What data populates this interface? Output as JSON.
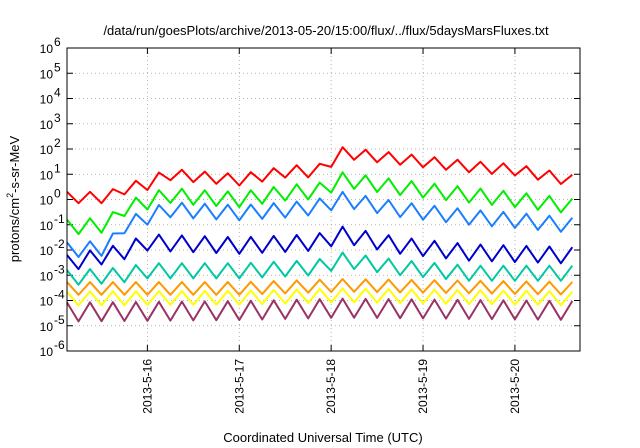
{
  "chart_data": {
    "type": "line",
    "title": "/data/run/goesPlots/archive/2013-05-20/15:00/flux/../flux/5daysMarsFluxes.txt",
    "xlabel": "Coordinated Universal Time (UTC)",
    "ylabel": "protons/cm2-s-sr-MeV",
    "ylabel_parts": {
      "pre": "protons/cm",
      "sup": "2",
      "post": "-s-sr-MeV"
    },
    "yscale": "log",
    "ylim": [
      1e-06,
      1000000.0
    ],
    "xlim": [
      "2013-05-15 03:00",
      "2013-05-20 17:00"
    ],
    "grid": true,
    "y_ticks": [
      {
        "base": "10",
        "exp": "-6",
        "value": 1e-06
      },
      {
        "base": "10",
        "exp": "-5",
        "value": 1e-05
      },
      {
        "base": "10",
        "exp": "-4",
        "value": 0.0001
      },
      {
        "base": "10",
        "exp": "-3",
        "value": 0.001
      },
      {
        "base": "10",
        "exp": "-2",
        "value": 0.01
      },
      {
        "base": "10",
        "exp": "-1",
        "value": 0.1
      },
      {
        "base": "10",
        "exp": "0",
        "value": 1
      },
      {
        "base": "10",
        "exp": "1",
        "value": 10
      },
      {
        "base": "10",
        "exp": "2",
        "value": 100
      },
      {
        "base": "10",
        "exp": "3",
        "value": 1000
      },
      {
        "base": "10",
        "exp": "4",
        "value": 10000
      },
      {
        "base": "10",
        "exp": "5",
        "value": 100000
      },
      {
        "base": "10",
        "exp": "6",
        "value": 1000000
      }
    ],
    "x_ticks": [
      {
        "label": "2013-5-16",
        "value": "2013-05-16"
      },
      {
        "label": "2013-5-17",
        "value": "2013-05-17"
      },
      {
        "label": "2013-5-18",
        "value": "2013-05-18"
      },
      {
        "label": "2013-5-19",
        "value": "2013-05-19"
      },
      {
        "label": "2013-5-20",
        "value": "2013-05-20"
      }
    ],
    "series": [
      {
        "color": "#ff0000",
        "x": [
          "2013-05-15 03:00",
          "2013-05-15 14:00",
          "2013-05-15 17:00",
          "2013-05-16 00:00",
          "2013-05-16 05:00",
          "2013-05-16 13:00",
          "2013-05-17 00:00",
          "2013-05-17 14:00",
          "2013-05-17 20:00",
          "2013-05-18 03:00",
          "2013-05-18 18:00",
          "2013-05-19 12:00",
          "2013-05-20 00:00",
          "2013-05-20 17:00"
        ],
        "y": [
          1.2,
          1.2,
          2.5,
          4,
          10,
          8,
          6,
          14,
          12,
          70,
          40,
          20,
          15,
          5
        ],
        "zigzag": 0.45
      },
      {
        "color": "#00ee00",
        "x": [
          "2013-05-15 03:00",
          "2013-05-15 14:00",
          "2013-05-15 17:00",
          "2013-05-16 00:00",
          "2013-05-16 05:00",
          "2013-05-16 13:00",
          "2013-05-17 00:00",
          "2013-05-17 14:00",
          "2013-05-17 20:00",
          "2013-05-18 03:00",
          "2013-05-18 18:00",
          "2013-05-19 12:00",
          "2013-05-20 00:00",
          "2013-05-20 17:00"
        ],
        "y": [
          0.08,
          0.1,
          0.4,
          0.8,
          1.5,
          1.2,
          1,
          2,
          2,
          6,
          3,
          1.5,
          1,
          0.5
        ],
        "zigzag": 0.6
      },
      {
        "color": "#1a7fff",
        "x": [
          "2013-05-15 03:00",
          "2013-05-15 14:00",
          "2013-05-15 17:00",
          "2013-05-16 00:00",
          "2013-05-16 05:00",
          "2013-05-16 13:00",
          "2013-05-17 00:00",
          "2013-05-17 14:00",
          "2013-05-17 20:00",
          "2013-05-18 03:00",
          "2013-05-18 18:00",
          "2013-05-19 12:00",
          "2013-05-20 00:00",
          "2013-05-20 17:00"
        ],
        "y": [
          0.01,
          0.012,
          0.08,
          0.2,
          0.4,
          0.35,
          0.3,
          0.4,
          0.5,
          1,
          0.4,
          0.2,
          0.15,
          0.09
        ],
        "zigzag": 0.6
      },
      {
        "color": "#0000cc",
        "x": [
          "2013-05-15 03:00",
          "2013-05-15 17:00",
          "2013-05-16 00:00",
          "2013-05-17 00:00",
          "2013-05-17 20:00",
          "2013-05-18 03:00",
          "2013-05-18 18:00",
          "2013-05-19 12:00",
          "2013-05-20 17:00"
        ],
        "y": [
          0.003,
          0.008,
          0.02,
          0.015,
          0.02,
          0.04,
          0.015,
          0.008,
          0.006
        ],
        "zigzag": 0.65
      },
      {
        "color": "#00c8a0",
        "x": [
          "2013-05-15 03:00",
          "2013-05-15 17:00",
          "2013-05-16 00:00",
          "2013-05-17 00:00",
          "2013-05-17 20:00",
          "2013-05-18 03:00",
          "2013-05-18 18:00",
          "2013-05-19 12:00",
          "2013-05-20 17:00"
        ],
        "y": [
          0.0008,
          0.001,
          0.0015,
          0.0015,
          0.002,
          0.004,
          0.002,
          0.0012,
          0.0012
        ],
        "zigzag": 0.6
      },
      {
        "color": "#ff9900",
        "x": [
          "2013-05-15 03:00",
          "2013-05-17 00:00",
          "2013-05-18 03:00",
          "2013-05-20 17:00"
        ],
        "y": [
          0.0003,
          0.0003,
          0.0004,
          0.0003
        ],
        "zigzag": 0.5
      },
      {
        "color": "#ffff00",
        "x": [
          "2013-05-15 03:00",
          "2013-05-17 00:00",
          "2013-05-18 03:00",
          "2013-05-20 17:00"
        ],
        "y": [
          0.00012,
          0.00013,
          0.00016,
          0.00012
        ],
        "zigzag": 0.55
      },
      {
        "color": "#993366",
        "x": [
          "2013-05-15 03:00",
          "2013-05-17 00:00",
          "2013-05-18 03:00",
          "2013-05-20 17:00"
        ],
        "y": [
          3.5e-05,
          4e-05,
          5e-05,
          4e-05
        ],
        "zigzag": 0.75
      }
    ]
  }
}
